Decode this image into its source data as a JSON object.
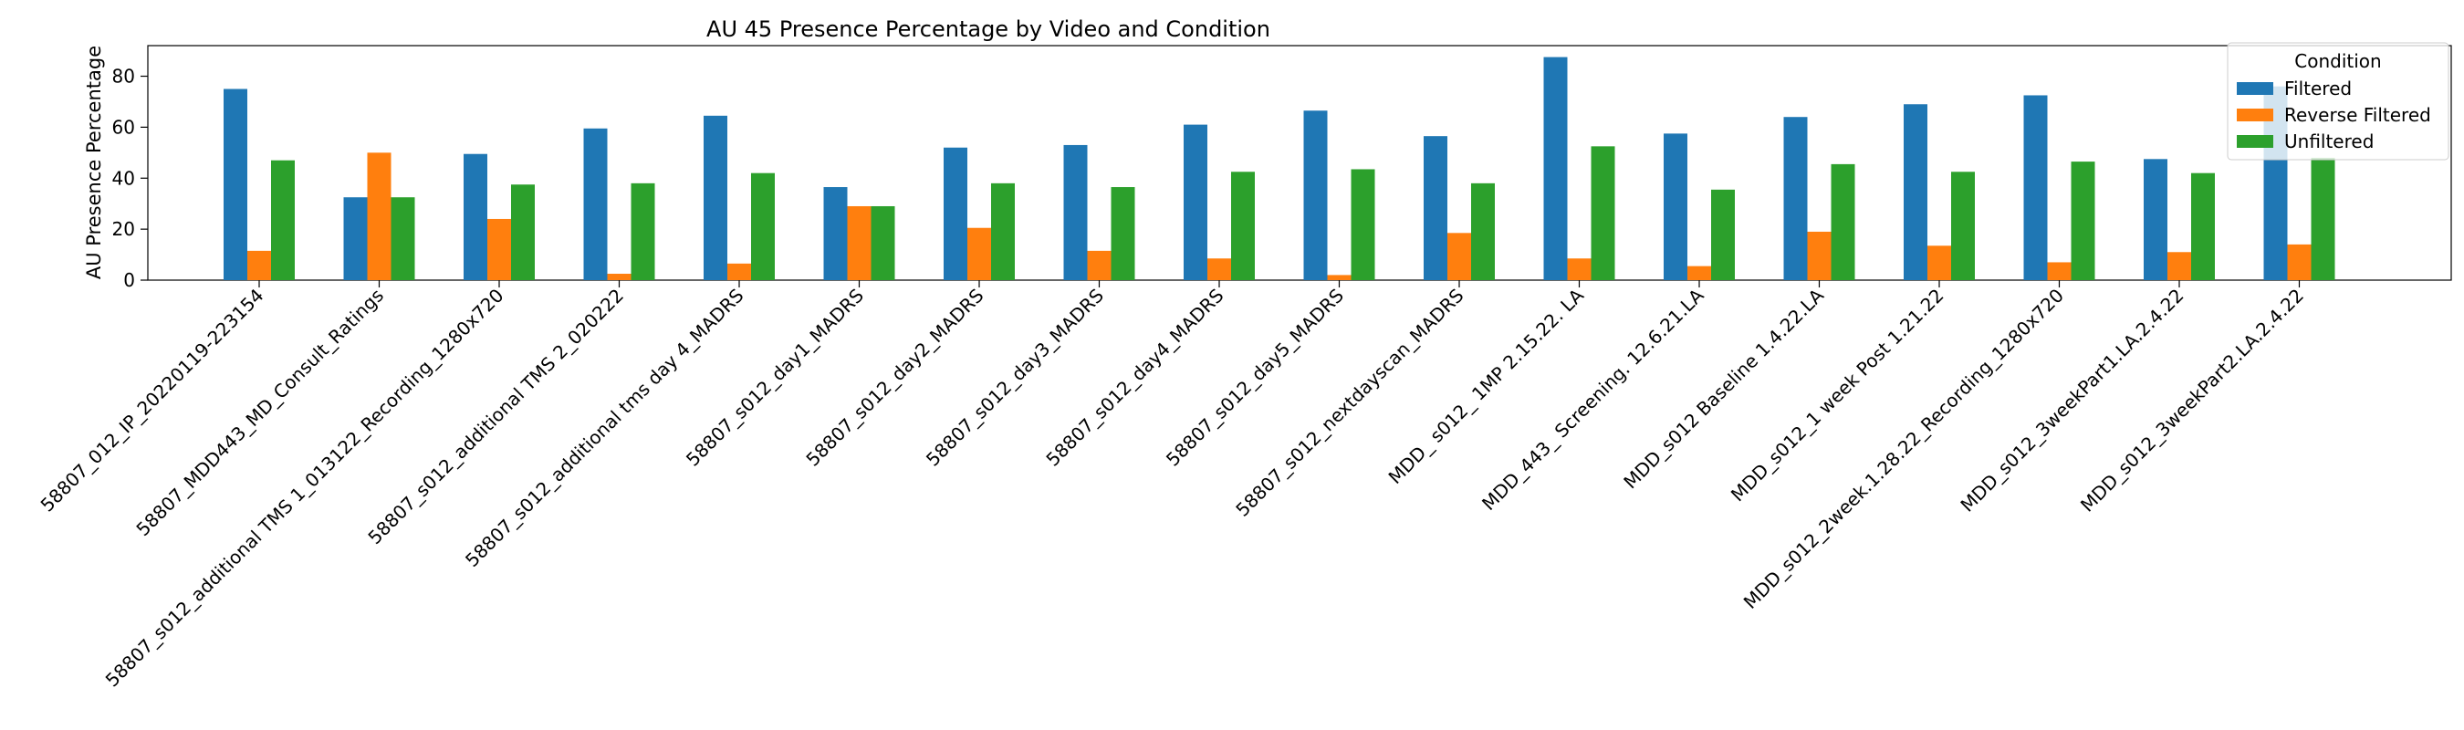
{
  "chart_data": {
    "type": "bar",
    "title": "AU 45 Presence Percentage by Video and Condition",
    "xlabel": "",
    "ylabel": "AU Presence Percentage",
    "ylim": [
      0,
      92
    ],
    "yticks": [
      0,
      20,
      40,
      60,
      80
    ],
    "grid": false,
    "legend": {
      "title": "Condition",
      "placement": "top-right"
    },
    "categories": [
      "58807_012_IP_20220119-223154",
      "58807_MDD443_MD_Consult_Ratings",
      "58807_s012_additional TMS 1_013122_Recording_1280x720",
      "58807_s012_additional TMS 2_020222",
      "58807_s012_additional tms day 4_MADRS",
      "58807_s012_day1_MADRS",
      "58807_s012_day2_MADRS",
      "58807_s012_day3_MADRS",
      "58807_s012_day4_MADRS",
      "58807_s012_day5_MADRS",
      "58807_s012_nextdayscan_MADRS",
      "MDD_ s012_ 1MP  2.15.22. LA",
      "MDD_443_ Screening. 12.6.21.LA",
      "MDD_s012 Baseline 1.4.22.LA",
      "MDD_s012_1 week Post 1.21.22",
      "MDD_s012_2week.1.28.22_Recording_1280x720",
      "MDD_s012_3weekPart1.LA.2.4.22",
      "MDD_s012_3weekPart2.LA.2.4.22"
    ],
    "series": [
      {
        "name": "Filtered",
        "color": "#1f77b4",
        "values": [
          75,
          32.5,
          49.5,
          59.5,
          64.5,
          36.5,
          52,
          53,
          61,
          66.5,
          56.5,
          87.5,
          57.5,
          64,
          69,
          72.5,
          47.5,
          76
        ]
      },
      {
        "name": "Reverse Filtered",
        "color": "#ff7f0e",
        "values": [
          11.5,
          50,
          24,
          2.5,
          6.5,
          29,
          20.5,
          11.5,
          8.5,
          2,
          18.5,
          8.5,
          5.5,
          19,
          13.5,
          7,
          11,
          14
        ]
      },
      {
        "name": "Unfiltered",
        "color": "#2ca02c",
        "values": [
          47,
          32.5,
          37.5,
          38,
          42,
          29,
          38,
          36.5,
          42.5,
          43.5,
          38,
          52.5,
          35.5,
          45.5,
          42.5,
          46.5,
          42,
          48
        ]
      }
    ]
  }
}
